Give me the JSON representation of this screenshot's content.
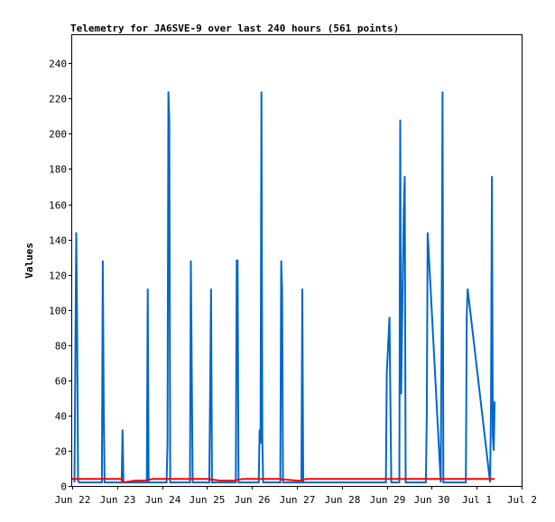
{
  "chart_data": {
    "type": "line",
    "title": "Telemetry for JA6SVE-9 over last 240 hours (561 points)",
    "xlabel": "",
    "ylabel": "Values",
    "x_ticks": [
      "Jun 22",
      "Jun 23",
      "Jun 24",
      "Jun 25",
      "Jun 26",
      "Jun 27",
      "Jun 28",
      "Jun 29",
      "Jun 30",
      "Jul 1",
      "Jul 2"
    ],
    "xlim_days": [
      0,
      10
    ],
    "ylim": [
      0,
      256
    ],
    "y_ticks": [
      0,
      20,
      40,
      60,
      80,
      100,
      120,
      140,
      160,
      180,
      200,
      220,
      240
    ],
    "grid": false,
    "legend": "none",
    "colors": {
      "series_1": "#0066cc",
      "series_2": "#ff0000",
      "axis": "#000000"
    },
    "series": [
      {
        "color": "#0066cc",
        "x_days": [
          0.05,
          0.07,
          0.09,
          0.11,
          0.13,
          0.15,
          0.66,
          0.68,
          0.7,
          0.72,
          1.1,
          1.12,
          1.14,
          1.66,
          1.68,
          1.7,
          2.1,
          2.12,
          2.14,
          2.16,
          2.18,
          2.62,
          2.64,
          2.66,
          2.68,
          3.05,
          3.07,
          3.09,
          3.11,
          3.64,
          3.66,
          3.68,
          3.7,
          4.15,
          4.17,
          4.19,
          4.21,
          4.23,
          4.25,
          4.63,
          4.65,
          4.67,
          4.69,
          5.1,
          5.12,
          5.14,
          6.98,
          7.0,
          7.06,
          7.08,
          7.1,
          7.28,
          7.3,
          7.32,
          7.34,
          7.36,
          7.38,
          7.4,
          7.42,
          7.44,
          7.87,
          7.89,
          7.91,
          8.2,
          8.22,
          8.24,
          8.26,
          8.76,
          8.78,
          8.8,
          9.3,
          9.32,
          9.34,
          9.36,
          9.38,
          9.4
        ],
        "y": [
          2,
          72,
          144,
          88,
          3,
          2,
          2,
          128,
          48,
          2,
          2,
          32,
          2,
          2,
          112,
          2,
          2,
          24,
          224,
          208,
          2,
          2,
          128,
          64,
          2,
          2,
          56,
          112,
          2,
          2,
          128,
          128,
          2,
          2,
          32,
          24,
          224,
          26,
          2,
          2,
          128,
          112,
          2,
          2,
          112,
          2,
          2,
          64,
          96,
          48,
          2,
          2,
          208,
          52,
          88,
          124,
          158,
          176,
          2,
          2,
          2,
          40,
          144,
          2,
          96,
          224,
          2,
          2,
          96,
          112,
          2,
          48,
          176,
          28,
          20,
          48
        ]
      },
      {
        "color": "#ff0000",
        "x_days": [
          0.0,
          0.12,
          0.14,
          1.1,
          1.14,
          1.4,
          1.6,
          1.8,
          2.0,
          2.16,
          2.18,
          3.0,
          3.3,
          3.6,
          3.8,
          4.0,
          4.2,
          4.6,
          5.0,
          5.1,
          5.2,
          5.6,
          6.0,
          7.0,
          8.0,
          9.0,
          9.4
        ],
        "y": [
          4,
          4,
          4,
          4,
          2,
          3,
          3,
          4,
          4,
          4,
          4,
          4,
          3,
          3,
          4,
          4,
          4,
          4,
          3,
          3,
          4,
          4,
          4,
          4,
          4,
          4,
          4
        ]
      }
    ]
  }
}
